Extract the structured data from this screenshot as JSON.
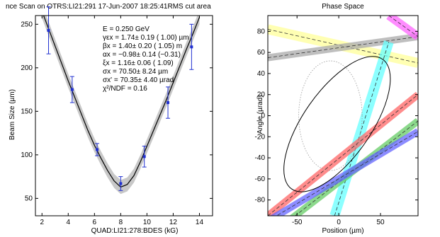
{
  "chart_data": [
    {
      "type": "scatter",
      "title": "nce Scan on OTRS:LI21:291  17-Jun-2007 18:25:41RMS cut area",
      "xlabel": "QUAD:LI21:278:BDES (kG)",
      "ylabel": "Beam Size (µm)",
      "xlim": [
        1.5,
        15
      ],
      "ylim": [
        30,
        260
      ],
      "x_ticks": [
        2,
        4,
        6,
        8,
        10,
        12,
        14
      ],
      "y_ticks": [
        50,
        100,
        150,
        200,
        250
      ],
      "points": [
        {
          "x": 2.5,
          "y": 243,
          "err": 27
        },
        {
          "x": 4.3,
          "y": 175,
          "err": 15
        },
        {
          "x": 6.2,
          "y": 106,
          "err": 7
        },
        {
          "x": 8.0,
          "y": 67,
          "err": 8
        },
        {
          "x": 9.8,
          "y": 98,
          "err": 12
        },
        {
          "x": 11.6,
          "y": 160,
          "err": 18
        },
        {
          "x": 13.4,
          "y": 224,
          "err": 26
        }
      ],
      "fit_curve": {
        "x": [
          2.0,
          2.5,
          3.0,
          3.5,
          4.0,
          4.5,
          5.0,
          5.5,
          6.0,
          6.5,
          7.0,
          7.5,
          8.0,
          8.5,
          9.0,
          9.5,
          10.0,
          10.5,
          11.0,
          11.5,
          12.0,
          12.5,
          13.0,
          13.5,
          14.0
        ],
        "y": [
          265,
          245,
          225,
          205,
          185,
          166,
          147,
          128,
          111,
          96,
          82,
          70,
          63,
          66,
          76,
          92,
          110,
          128,
          146,
          164,
          183,
          202,
          221,
          239,
          258
        ],
        "band": 8
      },
      "annotations": [
        "E =  0.250 GeV",
        "γεx =   1.74± 0.19 ( 1.00) µm",
        "βx =  1.40± 0.20 ( 1.05) m",
        "αx =  −0.98± 0.14 (−0.31)",
        "ξx =   1.16± 0.06 ( 1.09)",
        "σx =  70.50± 8.24 µm",
        "σx' =  70.35± 4.40 µrad",
        "χ²/NDF =  0.16"
      ],
      "grid": false,
      "colors": {
        "points": "#1f2fd0",
        "fit": "#000000",
        "band": "#c8c8c8"
      }
    },
    {
      "type": "area",
      "title": "Phase Space",
      "xlabel": "Position  (µm)",
      "ylabel": "Angle  (µrad)",
      "xlim": [
        -85,
        95
      ],
      "ylim": [
        -95,
        95
      ],
      "x_ticks": [
        -50,
        0,
        50
      ],
      "y_ticks": [
        -80,
        -60,
        -40,
        -20,
        0,
        20,
        40,
        60,
        80
      ],
      "bands": [
        {
          "color": "#ffff99",
          "x": [
            -85,
            95
          ],
          "y": [
            82,
            50
          ],
          "width": 14
        },
        {
          "color": "#aaaaaa",
          "x": [
            -85,
            95
          ],
          "y": [
            55,
            75
          ],
          "width": 10
        },
        {
          "color": "#ff66ff",
          "x": [
            60,
            95
          ],
          "y": [
            95,
            75
          ],
          "width": 12
        },
        {
          "color": "#66ffff",
          "x": [
            -5,
            60
          ],
          "y": [
            -95,
            70
          ],
          "width": 14
        },
        {
          "color": "#ff6666",
          "x": [
            -85,
            95
          ],
          "y": [
            -95,
            20
          ],
          "width": 10
        },
        {
          "color": "#66cc66",
          "x": [
            -85,
            95
          ],
          "y": [
            -115,
            -5
          ],
          "width": 10
        },
        {
          "color": "#6666ff",
          "x": [
            -85,
            95
          ],
          "y": [
            -100,
            -15
          ],
          "width": 10
        }
      ],
      "ellipse_solid": {
        "cx": -2,
        "cy": -8,
        "rx": 95,
        "ry": 32,
        "angle_deg": -55
      },
      "ellipse_dotted": {
        "cx": -10,
        "cy": 0,
        "rx": 38,
        "ry": 52,
        "angle_deg": 0
      },
      "grid": false
    }
  ]
}
